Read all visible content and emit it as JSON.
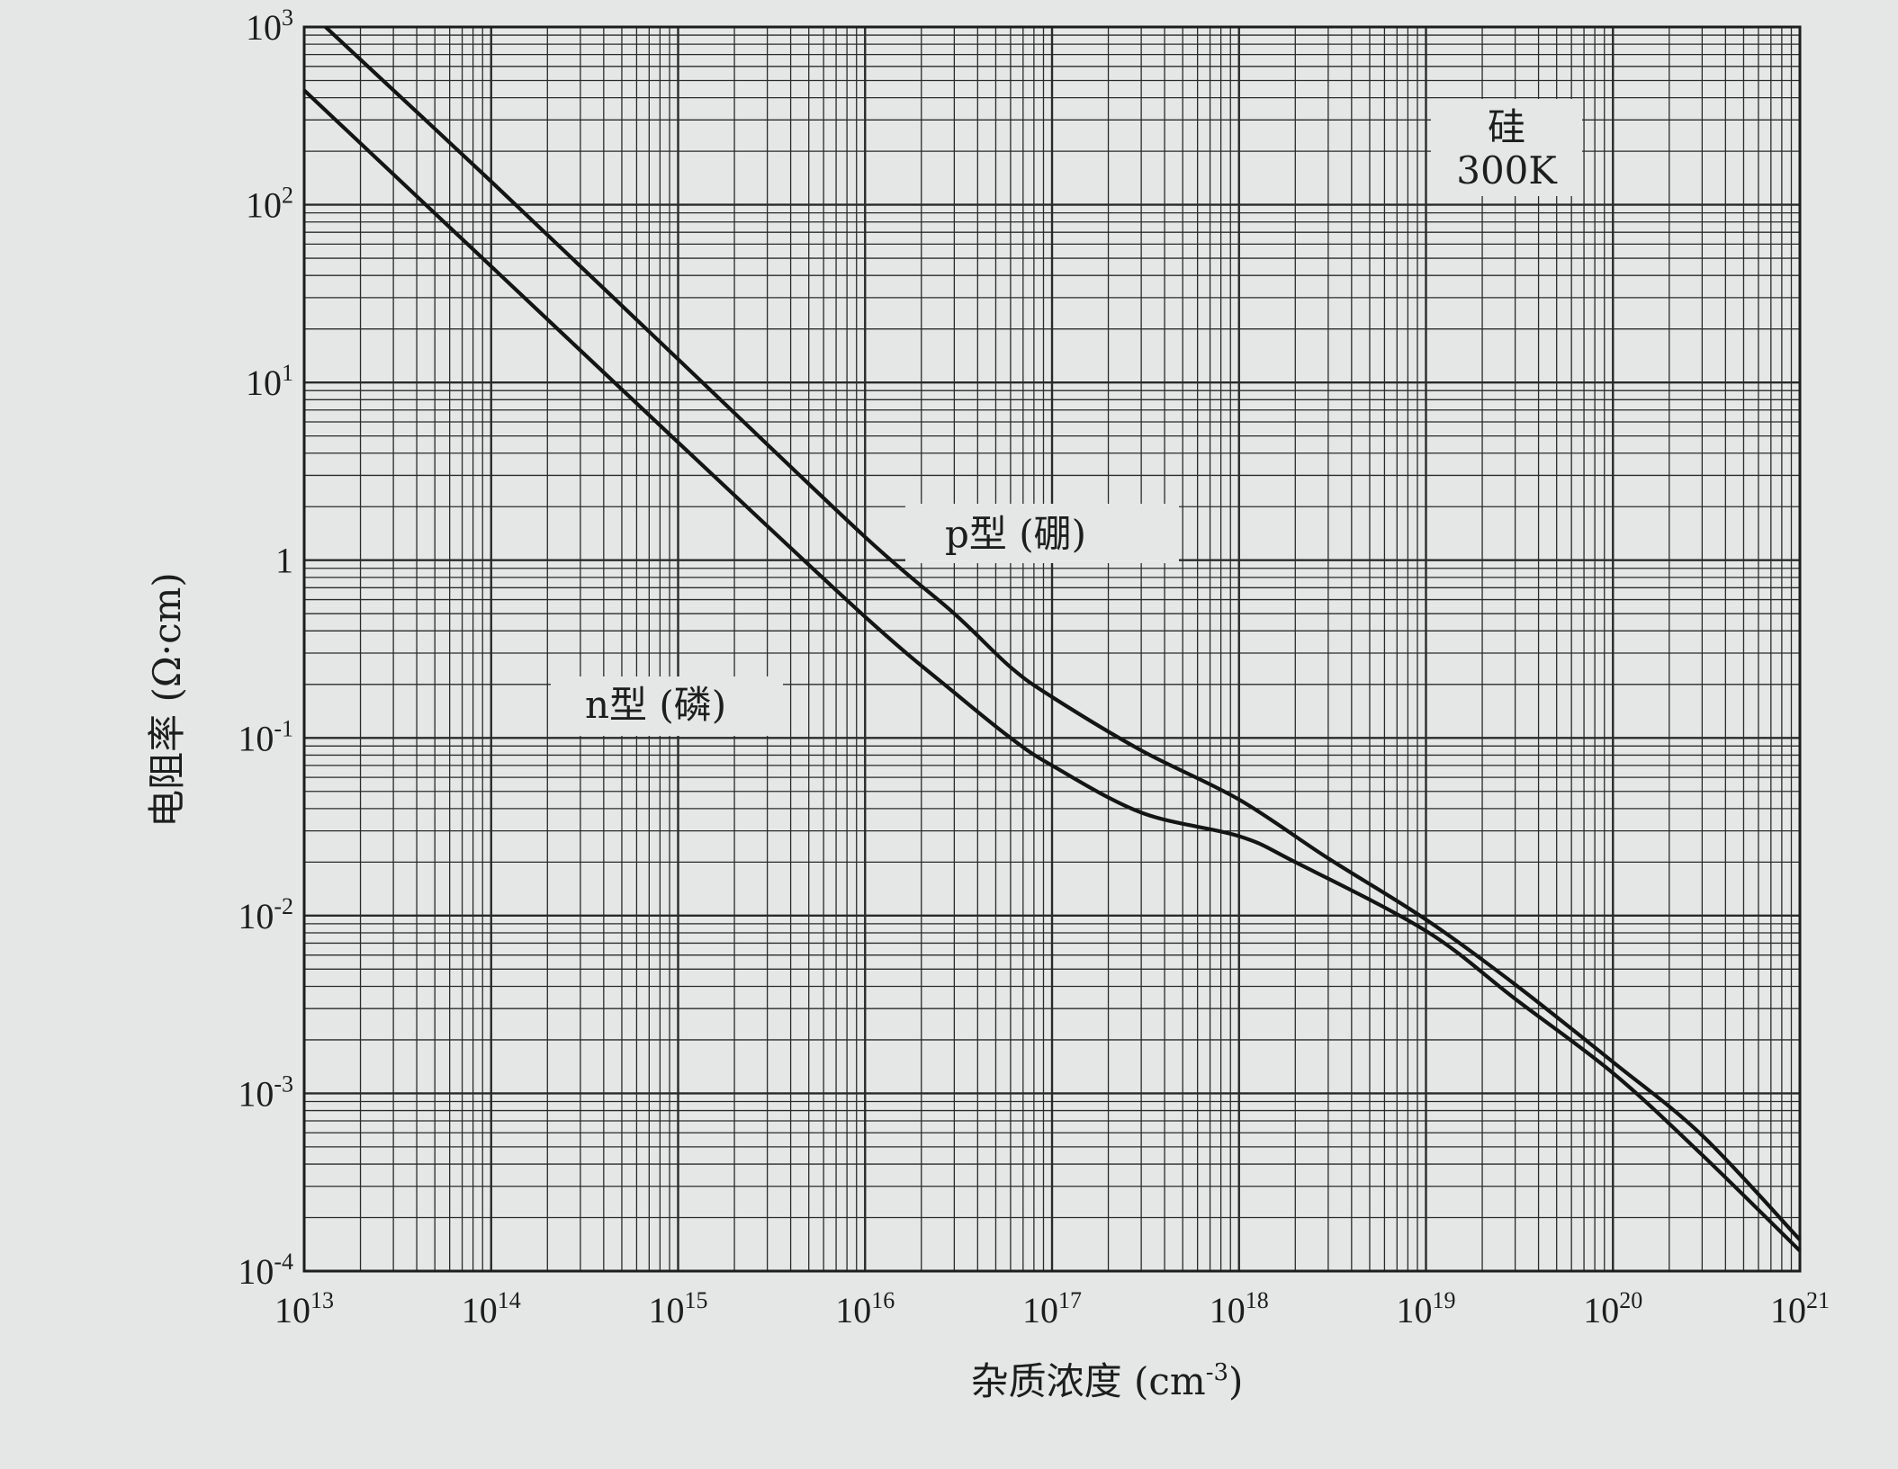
{
  "chart_data": {
    "type": "line",
    "title": "",
    "xlabel": "杂质浓度 (cm",
    "xlabel_sup": "-3",
    "xlabel_end": ")",
    "ylabel": "电阻率 (Ω·cm)",
    "x_scale": "log",
    "y_scale": "log",
    "xlim": [
      10000000000000.0,
      1e+21
    ],
    "ylim": [
      0.0001,
      1000.0
    ],
    "grid": true,
    "x_ticks": [
      {
        "base": "10",
        "exp": "13"
      },
      {
        "base": "10",
        "exp": "14"
      },
      {
        "base": "10",
        "exp": "15"
      },
      {
        "base": "10",
        "exp": "16"
      },
      {
        "base": "10",
        "exp": "17"
      },
      {
        "base": "10",
        "exp": "18"
      },
      {
        "base": "10",
        "exp": "19"
      },
      {
        "base": "10",
        "exp": "20"
      },
      {
        "base": "10",
        "exp": "21"
      }
    ],
    "y_ticks": [
      {
        "base": "10",
        "exp": "3"
      },
      {
        "base": "10",
        "exp": "2"
      },
      {
        "base": "10",
        "exp": "1"
      },
      {
        "base": "1",
        "exp": ""
      },
      {
        "base": "10",
        "exp": "-1"
      },
      {
        "base": "10",
        "exp": "-2"
      },
      {
        "base": "10",
        "exp": "-3"
      },
      {
        "base": "10",
        "exp": "-4"
      }
    ],
    "annotation": {
      "line1": "硅",
      "line2": "300K"
    },
    "series": [
      {
        "name": "p型 (硼)",
        "x": [
          13000000000000.0,
          100000000000000.0,
          1000000000000000.0,
          1e+16,
          3e+16,
          6e+16,
          1e+17,
          3e+17,
          1e+18,
          3e+18,
          1e+19,
          3e+19,
          1e+20,
          3e+20,
          1e+21
        ],
        "y": [
          1000,
          135,
          13.5,
          1.35,
          0.5,
          0.25,
          0.17,
          0.085,
          0.045,
          0.021,
          0.0095,
          0.0041,
          0.0015,
          0.00058,
          0.00015
        ]
      },
      {
        "name": "n型 (磷)",
        "x": [
          10000000000000.0,
          100000000000000.0,
          1000000000000000.0,
          1e+16,
          3e+16,
          6e+16,
          1e+17,
          3e+17,
          1e+18,
          2e+18,
          1e+19,
          3e+19,
          1e+20,
          3e+20,
          1e+21
        ],
        "y": [
          440,
          45,
          4.6,
          0.48,
          0.18,
          0.1,
          0.07,
          0.038,
          0.028,
          0.02,
          0.0082,
          0.0034,
          0.0013,
          0.00045,
          0.00013
        ]
      }
    ]
  }
}
